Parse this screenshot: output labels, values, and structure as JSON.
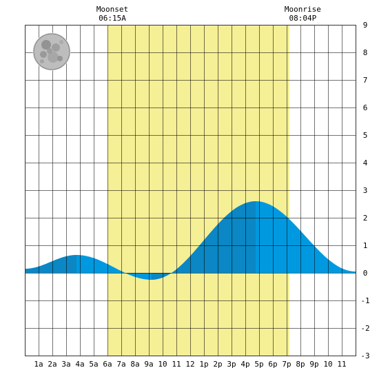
{
  "chart_data": {
    "type": "area",
    "title": "",
    "xlabel": "",
    "ylabel": "",
    "x_range_hours": [
      0,
      24
    ],
    "ylim": [
      -3,
      9
    ],
    "y_ticks": [
      "-3",
      "-2",
      "-1",
      "0",
      "1",
      "2",
      "3",
      "4",
      "5",
      "6",
      "7",
      "8",
      "9"
    ],
    "x_tick_labels": [
      "1a",
      "2a",
      "3a",
      "4a",
      "5a",
      "6a",
      "7a",
      "8a",
      "9a",
      "10",
      "11",
      "12",
      "1p",
      "2p",
      "3p",
      "4p",
      "5p",
      "6p",
      "7p",
      "8p",
      "9p",
      "10",
      "11"
    ],
    "grid": true,
    "daylight_hours": [
      6.0,
      19.2
    ],
    "tide_extremes": [
      {
        "hour": 0.0,
        "value": 0.15
      },
      {
        "hour": 3.75,
        "value": 0.65
      },
      {
        "hour": 9.2,
        "value": -0.25
      },
      {
        "hour": 16.75,
        "value": 2.6
      },
      {
        "hour": 24.0,
        "value": 0.05
      }
    ],
    "events": [
      {
        "label": "Moonset",
        "time": "06:15A",
        "hour": 6.25
      },
      {
        "label": "Moonrise",
        "time": "08:04P",
        "hour": 20.07
      }
    ],
    "moon_phase": "full-moon-icon",
    "colors": {
      "daylight": "#f5ef96",
      "tide_rising": "#0a87c4",
      "tide_falling": "#0099e0",
      "grid": "#000000",
      "background": "#ffffff"
    }
  }
}
